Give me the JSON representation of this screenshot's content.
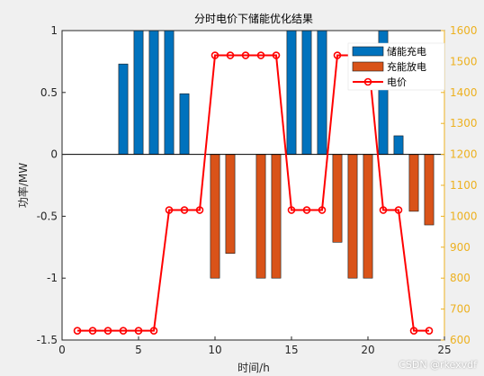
{
  "chart_data": {
    "type": "bar",
    "title": "分时电价下储能优化结果",
    "xlabel": "时间/h",
    "ylabel_left": "功率/MW",
    "ylabel_right": "",
    "xlim": [
      0,
      25
    ],
    "xticks": [
      0,
      5,
      10,
      15,
      20,
      25
    ],
    "ylim_left": [
      -1.5,
      1
    ],
    "yticks_left": [
      -1.5,
      -1,
      -0.5,
      0,
      0.5,
      1
    ],
    "ylim_right": [
      600,
      1600
    ],
    "yticks_right": [
      600,
      700,
      800,
      900,
      1000,
      1100,
      1200,
      1300,
      1400,
      1500,
      1600
    ],
    "x": [
      1,
      2,
      3,
      4,
      5,
      6,
      7,
      8,
      9,
      10,
      11,
      12,
      13,
      14,
      15,
      16,
      17,
      18,
      19,
      20,
      21,
      22,
      23,
      24
    ],
    "series": [
      {
        "name": "储能充电",
        "axis": "left",
        "kind": "bar",
        "values": [
          0,
          0,
          0,
          0.73,
          1,
          1,
          1,
          0.49,
          0,
          0,
          0,
          0,
          0,
          0,
          1,
          1,
          1,
          0,
          0,
          0,
          1,
          0.15,
          0,
          0
        ]
      },
      {
        "name": "充能放电",
        "axis": "left",
        "kind": "bar",
        "values": [
          0,
          0,
          0,
          0,
          0,
          0,
          0,
          0,
          0,
          -1,
          -0.8,
          0,
          -1,
          -1,
          0,
          0,
          0,
          -0.71,
          -1,
          -1,
          0,
          0,
          -0.46,
          -0.57
        ]
      },
      {
        "name": "电价",
        "axis": "right",
        "kind": "line",
        "values": [
          630,
          630,
          630,
          630,
          630,
          630,
          1020,
          1020,
          1020,
          1520,
          1520,
          1520,
          1520,
          1520,
          1020,
          1020,
          1020,
          1520,
          1520,
          1520,
          1020,
          1020,
          630,
          630
        ]
      }
    ],
    "legend_position": "top-right",
    "colors": {
      "charge": "#0072bd",
      "discharge": "#d95319",
      "price": "#ff0000",
      "right_axis": "#edb120"
    }
  },
  "watermark": "CSDN @rkexvdf"
}
